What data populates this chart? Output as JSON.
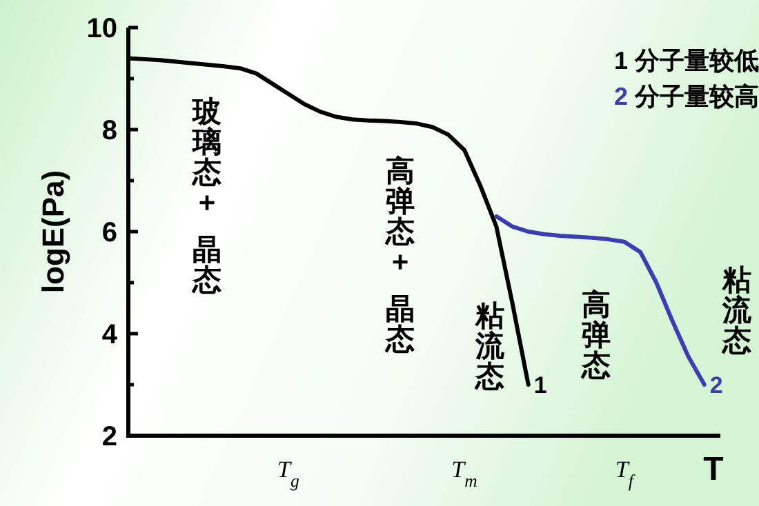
{
  "chart_data": {
    "type": "line",
    "xlabel": "T",
    "ylabel": "logE(Pa)",
    "categories": [
      null,
      null,
      null,
      null,
      null,
      null,
      null,
      null,
      null,
      null,
      "T$_{g}$",
      null,
      null,
      null,
      null,
      null,
      null,
      null,
      null,
      null,
      null,
      "T$_{m}$",
      null,
      null,
      null,
      null,
      null,
      null,
      null,
      null,
      null,
      "T$_{f}$",
      null,
      null,
      null,
      null,
      null,
      null
    ],
    "series": [
      {
        "name": "1 分子量较低",
        "color": "#000000",
        "values": [
          9.4,
          9.38,
          9.36,
          9.33,
          9.3,
          9.27,
          9.24,
          9.2,
          9.1,
          8.9,
          8.7,
          8.5,
          8.35,
          8.25,
          8.2,
          8.18,
          8.17,
          8.15,
          8.12,
          8.05,
          7.9,
          7.6,
          6.9,
          6.1,
          4.6,
          3.0,
          null,
          null,
          null,
          null,
          null,
          null,
          null,
          null,
          null,
          null,
          null,
          null
        ]
      },
      {
        "name": "2 分子量较高",
        "color": "#3c3cb4",
        "values": [
          null,
          null,
          null,
          null,
          null,
          null,
          null,
          null,
          null,
          null,
          null,
          null,
          null,
          null,
          null,
          null,
          null,
          null,
          null,
          null,
          null,
          null,
          null,
          6.3,
          6.1,
          6.0,
          5.95,
          5.92,
          5.9,
          5.88,
          5.85,
          5.8,
          5.6,
          5.0,
          4.25,
          3.55,
          3.0,
          null
        ]
      }
    ],
    "ylim": [
      2,
      10
    ],
    "yticks": [
      2,
      {
        "value": 3,
        "label": null
      },
      4,
      {
        "value": 5,
        "label": null
      },
      6,
      {
        "value": 7,
        "label": null
      },
      8,
      {
        "value": 9,
        "label": null
      },
      10
    ],
    "legend": "top right",
    "annotations": [
      "玻璃态+ 晶态",
      "高弹态+ 晶态",
      "粘流态",
      "高弹态",
      "粘流态",
      "1",
      "2"
    ]
  }
}
